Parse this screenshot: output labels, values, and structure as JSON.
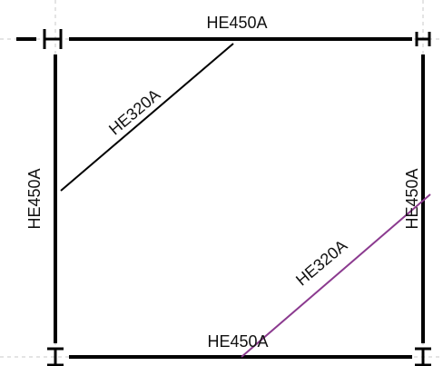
{
  "members": {
    "top_beam": "HE450A",
    "bottom_beam": "HE450A",
    "left_column": "HE450A",
    "right_column": "HE450A",
    "upper_brace": "HE320A",
    "lower_brace": "HE320A"
  },
  "colors": {
    "member": "#000000",
    "selected_member": "#8b3a8f",
    "gridline": "#c8c8c8"
  }
}
